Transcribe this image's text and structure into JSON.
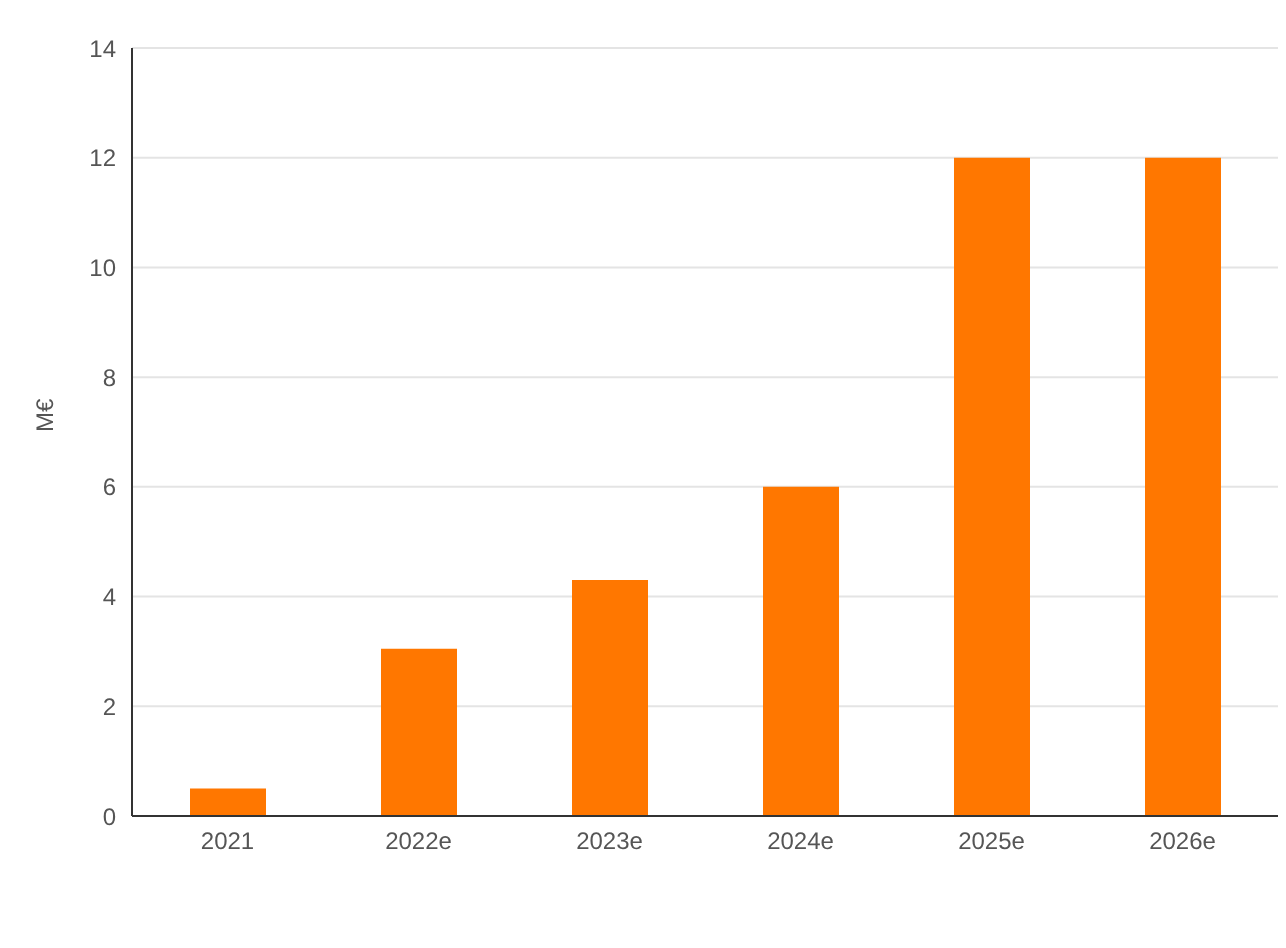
{
  "chart_data": {
    "type": "bar",
    "ylabel": "M€",
    "categories": [
      "2021",
      "2022e",
      "2023e",
      "2024e",
      "2025e",
      "2026e"
    ],
    "series": [
      {
        "color": "#ff7700",
        "values": [
          0.5,
          3.05,
          4.3,
          6,
          12,
          12
        ]
      }
    ],
    "ylim": [
      0,
      14
    ],
    "yticks": [
      0,
      2,
      4,
      6,
      8,
      10,
      12,
      14
    ],
    "grid": "y"
  }
}
